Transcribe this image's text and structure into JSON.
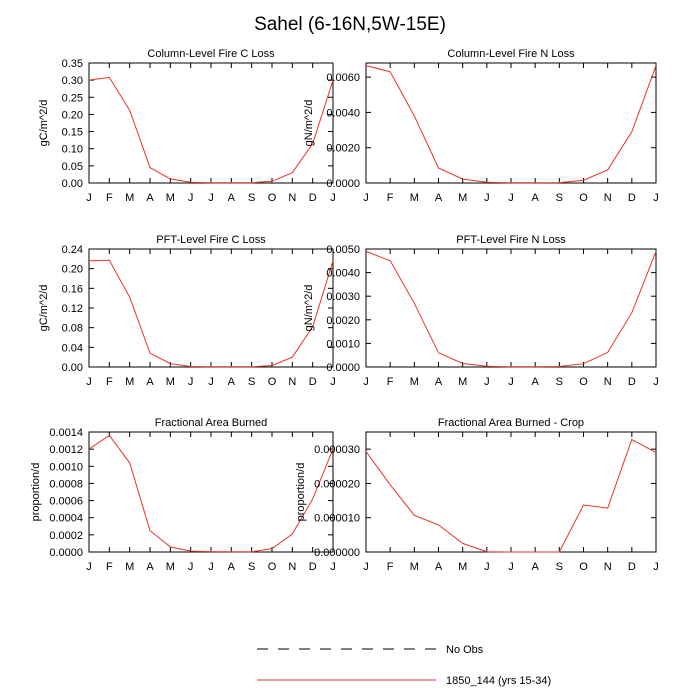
{
  "page": {
    "title": "Sahel (6-16N,5W-15E)"
  },
  "colors": {
    "series": "#e8332a",
    "axis": "#000000",
    "obs": "#000000"
  },
  "legend": {
    "obs_label": "No Obs",
    "model_label": "1850_144 (yrs 15-34)"
  },
  "chart_data": [
    {
      "type": "line",
      "title": "Column-Level Fire C Loss",
      "ylabel": "gC/m^2/d",
      "categories": [
        "J",
        "F",
        "M",
        "A",
        "M",
        "J",
        "J",
        "A",
        "S",
        "O",
        "N",
        "D",
        "J"
      ],
      "ylim": [
        0,
        0.35
      ],
      "yticks": [
        0,
        0.05,
        0.1,
        0.15,
        0.2,
        0.25,
        0.3,
        0.35
      ],
      "ytick_labels": [
        "0.00",
        "0.05",
        "0.10",
        "0.15",
        "0.20",
        "0.25",
        "0.30",
        "0.35"
      ],
      "series": [
        {
          "values": [
            0.3,
            0.308,
            0.212,
            0.045,
            0.012,
            0.002,
            0.001,
            0.001,
            0.001,
            0.005,
            0.03,
            0.115,
            0.3
          ]
        }
      ]
    },
    {
      "type": "line",
      "title": "Column-Level Fire N Loss",
      "ylabel": "gN/m^2/d",
      "categories": [
        "J",
        "F",
        "M",
        "A",
        "M",
        "J",
        "J",
        "A",
        "S",
        "O",
        "N",
        "D",
        "J"
      ],
      "ylim": [
        0,
        0.0068
      ],
      "yticks": [
        0,
        0.002,
        0.004,
        0.006
      ],
      "ytick_labels": [
        "0.0000",
        "0.0020",
        "0.0040",
        "0.0060"
      ],
      "series": [
        {
          "values": [
            0.00665,
            0.0063,
            0.0038,
            0.00085,
            0.00022,
            4e-05,
            1e-05,
            1e-05,
            2e-05,
            0.00016,
            0.00075,
            0.0029,
            0.00665
          ]
        }
      ]
    },
    {
      "type": "line",
      "title": "PFT-Level Fire C Loss",
      "ylabel": "gC/m^2/d",
      "categories": [
        "J",
        "F",
        "M",
        "A",
        "M",
        "J",
        "J",
        "A",
        "S",
        "O",
        "N",
        "D",
        "J"
      ],
      "ylim": [
        0,
        0.24
      ],
      "yticks": [
        0,
        0.04,
        0.08,
        0.12,
        0.16,
        0.2,
        0.24
      ],
      "ytick_labels": [
        "0.00",
        "0.04",
        "0.08",
        "0.12",
        "0.16",
        "0.20",
        "0.24"
      ],
      "series": [
        {
          "values": [
            0.216,
            0.217,
            0.142,
            0.028,
            0.007,
            0.001,
            0.0005,
            0.0005,
            0.0005,
            0.003,
            0.02,
            0.082,
            0.216
          ]
        }
      ]
    },
    {
      "type": "line",
      "title": "PFT-Level Fire N Loss",
      "ylabel": "gN/m^2/d",
      "categories": [
        "J",
        "F",
        "M",
        "A",
        "M",
        "J",
        "J",
        "A",
        "S",
        "O",
        "N",
        "D",
        "J"
      ],
      "ylim": [
        0,
        0.005
      ],
      "yticks": [
        0,
        0.001,
        0.002,
        0.003,
        0.004,
        0.005
      ],
      "ytick_labels": [
        "0.0000",
        "0.0010",
        "0.0020",
        "0.0030",
        "0.0040",
        "0.0050"
      ],
      "series": [
        {
          "values": [
            0.0049,
            0.0045,
            0.0027,
            0.0006,
            0.00015,
            3e-05,
            1e-05,
            1e-05,
            2e-05,
            0.00014,
            0.00062,
            0.0023,
            0.0049
          ]
        }
      ]
    },
    {
      "type": "line",
      "title": "Fractional Area Burned",
      "ylabel": "proportion/d",
      "categories": [
        "J",
        "F",
        "M",
        "A",
        "M",
        "J",
        "J",
        "A",
        "S",
        "O",
        "N",
        "D",
        "J"
      ],
      "ylim": [
        0,
        0.0014
      ],
      "yticks": [
        0,
        0.0002,
        0.0004,
        0.0006,
        0.0008,
        0.001,
        0.0012,
        0.0014
      ],
      "ytick_labels": [
        "0.0000",
        "0.0002",
        "0.0004",
        "0.0006",
        "0.0008",
        "0.0010",
        "0.0012",
        "0.0014"
      ],
      "series": [
        {
          "values": [
            0.0012,
            0.00136,
            0.00104,
            0.00025,
            6e-05,
            1e-05,
            5e-06,
            3e-06,
            3e-06,
            4e-05,
            0.00021,
            0.00062,
            0.0012
          ]
        }
      ]
    },
    {
      "type": "line",
      "title": "Fractional Area Burned - Crop",
      "ylabel": "proportion/d",
      "categories": [
        "J",
        "F",
        "M",
        "A",
        "M",
        "J",
        "J",
        "A",
        "S",
        "O",
        "N",
        "D",
        "J"
      ],
      "ylim": [
        0,
        3.5e-05
      ],
      "yticks": [
        0,
        1e-05,
        2e-05,
        3e-05
      ],
      "ytick_labels": [
        "0.000000",
        "0.000010",
        "0.000020",
        "0.000030"
      ],
      "series": [
        {
          "values": [
            2.93e-05,
            1.96e-05,
            1.07e-05,
            7.9e-06,
            2.5e-06,
            1e-07,
            0.0,
            0.0,
            0.0,
            1.37e-05,
            1.28e-05,
            3.28e-05,
            2.9e-05
          ]
        }
      ]
    }
  ]
}
